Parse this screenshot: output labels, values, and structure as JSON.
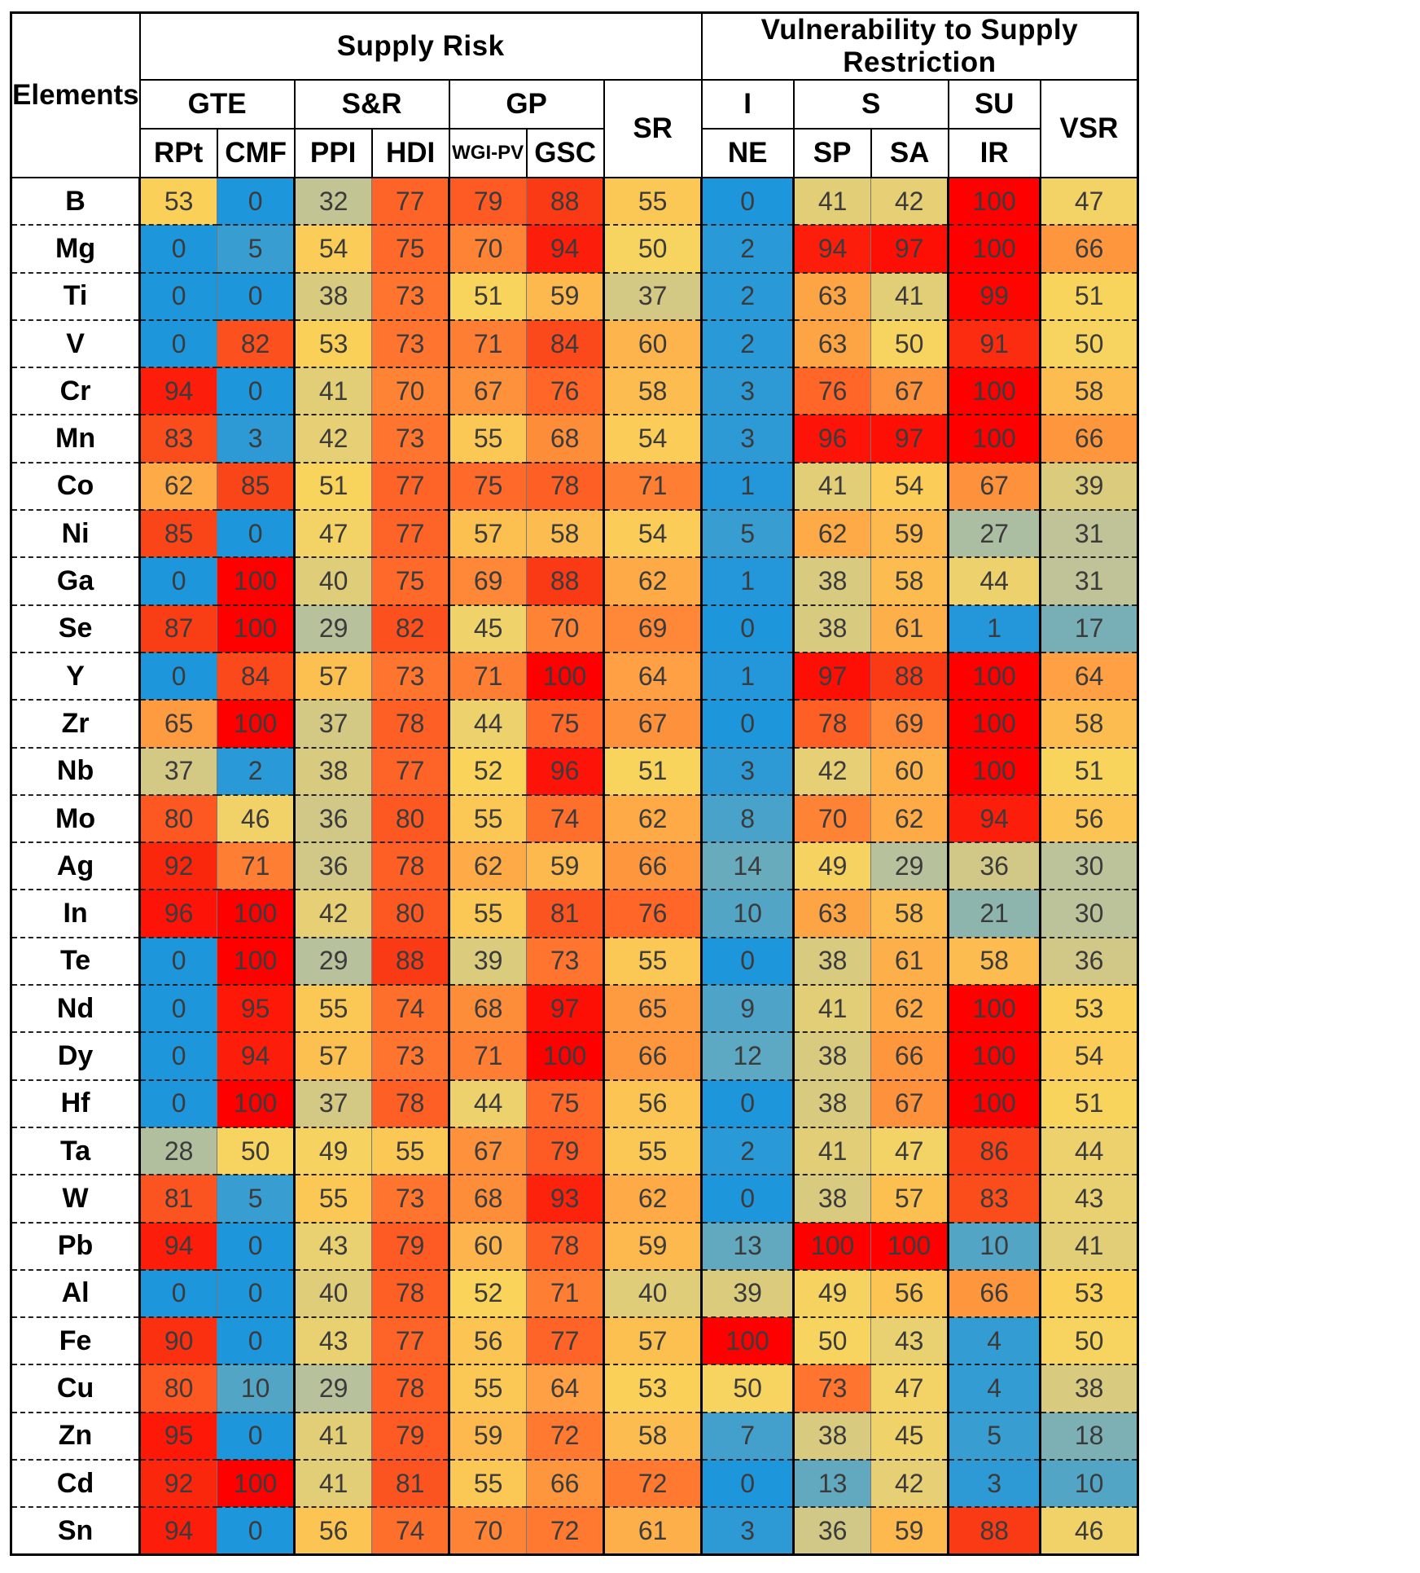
{
  "chart_data": {
    "type": "table",
    "title": "",
    "row_header_label": "Elements",
    "group_headers": [
      "Supply Risk",
      "Vulnerability to Supply Restriction"
    ],
    "sub_group_headers": [
      "GTE",
      "S&R",
      "GP",
      "SR",
      "I",
      "S",
      "SU",
      "VSR"
    ],
    "columns": [
      "RPt",
      "CMF",
      "PPI",
      "HDI",
      "WGI-PV",
      "GSC",
      "SR",
      "NE",
      "SP",
      "SA",
      "IR",
      "VSR"
    ],
    "elements": [
      "B",
      "Mg",
      "Ti",
      "V",
      "Cr",
      "Mn",
      "Co",
      "Ni",
      "Ga",
      "Se",
      "Y",
      "Zr",
      "Nb",
      "Mo",
      "Ag",
      "In",
      "Te",
      "Nd",
      "Dy",
      "Hf",
      "Ta",
      "W",
      "Pb",
      "Al",
      "Fe",
      "Cu",
      "Zn",
      "Cd",
      "Sn"
    ],
    "values": [
      [
        53,
        0,
        32,
        77,
        79,
        88,
        55,
        0,
        41,
        42,
        100,
        47
      ],
      [
        0,
        5,
        54,
        75,
        70,
        94,
        50,
        2,
        94,
        97,
        100,
        66
      ],
      [
        0,
        0,
        38,
        73,
        51,
        59,
        37,
        2,
        63,
        41,
        99,
        51
      ],
      [
        0,
        82,
        53,
        73,
        71,
        84,
        60,
        2,
        63,
        50,
        91,
        50
      ],
      [
        94,
        0,
        41,
        70,
        67,
        76,
        58,
        3,
        76,
        67,
        100,
        58
      ],
      [
        83,
        3,
        42,
        73,
        55,
        68,
        54,
        3,
        96,
        97,
        100,
        66
      ],
      [
        62,
        85,
        51,
        77,
        75,
        78,
        71,
        1,
        41,
        54,
        67,
        39
      ],
      [
        85,
        0,
        47,
        77,
        57,
        58,
        54,
        5,
        62,
        59,
        27,
        31
      ],
      [
        0,
        100,
        40,
        75,
        69,
        88,
        62,
        1,
        38,
        58,
        44,
        31
      ],
      [
        87,
        100,
        29,
        82,
        45,
        70,
        69,
        0,
        38,
        61,
        1,
        17
      ],
      [
        0,
        84,
        57,
        73,
        71,
        100,
        64,
        1,
        97,
        88,
        100,
        64
      ],
      [
        65,
        100,
        37,
        78,
        44,
        75,
        67,
        0,
        78,
        69,
        100,
        58
      ],
      [
        37,
        2,
        38,
        77,
        52,
        96,
        51,
        3,
        42,
        60,
        100,
        51
      ],
      [
        80,
        46,
        36,
        80,
        55,
        74,
        62,
        8,
        70,
        62,
        94,
        56
      ],
      [
        92,
        71,
        36,
        78,
        62,
        59,
        66,
        14,
        49,
        29,
        36,
        30
      ],
      [
        96,
        100,
        42,
        80,
        55,
        81,
        76,
        10,
        63,
        58,
        21,
        30
      ],
      [
        0,
        100,
        29,
        88,
        39,
        73,
        55,
        0,
        38,
        61,
        58,
        36
      ],
      [
        0,
        95,
        55,
        74,
        68,
        97,
        65,
        9,
        41,
        62,
        100,
        53
      ],
      [
        0,
        94,
        57,
        73,
        71,
        100,
        66,
        12,
        38,
        66,
        100,
        54
      ],
      [
        0,
        100,
        37,
        78,
        44,
        75,
        56,
        0,
        38,
        67,
        100,
        51
      ],
      [
        28,
        50,
        49,
        55,
        67,
        79,
        55,
        2,
        41,
        47,
        86,
        44
      ],
      [
        81,
        5,
        55,
        73,
        68,
        93,
        62,
        0,
        38,
        57,
        83,
        43
      ],
      [
        94,
        0,
        43,
        79,
        60,
        78,
        59,
        13,
        100,
        100,
        10,
        41
      ],
      [
        0,
        0,
        40,
        78,
        52,
        71,
        40,
        39,
        49,
        56,
        66,
        53
      ],
      [
        90,
        0,
        43,
        77,
        56,
        77,
        57,
        100,
        50,
        43,
        4,
        50
      ],
      [
        80,
        10,
        29,
        78,
        55,
        64,
        53,
        50,
        73,
        47,
        4,
        38
      ],
      [
        95,
        0,
        41,
        79,
        59,
        72,
        58,
        7,
        38,
        45,
        5,
        18
      ],
      [
        92,
        100,
        41,
        81,
        55,
        66,
        72,
        0,
        13,
        42,
        3,
        10
      ],
      [
        94,
        0,
        56,
        74,
        70,
        72,
        61,
        3,
        36,
        59,
        88,
        46
      ]
    ],
    "color_scale": {
      "min_value": 0,
      "max_value": 100,
      "stops": [
        {
          "value": 0,
          "color": "#1e96dc"
        },
        {
          "value": 30,
          "color": "#bcc29a"
        },
        {
          "value": 45,
          "color": "#f0d26a"
        },
        {
          "value": 52,
          "color": "#fad45a"
        },
        {
          "value": 60,
          "color": "#fdb44c"
        },
        {
          "value": 75,
          "color": "#ff6a2a"
        },
        {
          "value": 88,
          "color": "#f93a14"
        },
        {
          "value": 100,
          "color": "#ff0000"
        }
      ]
    }
  }
}
